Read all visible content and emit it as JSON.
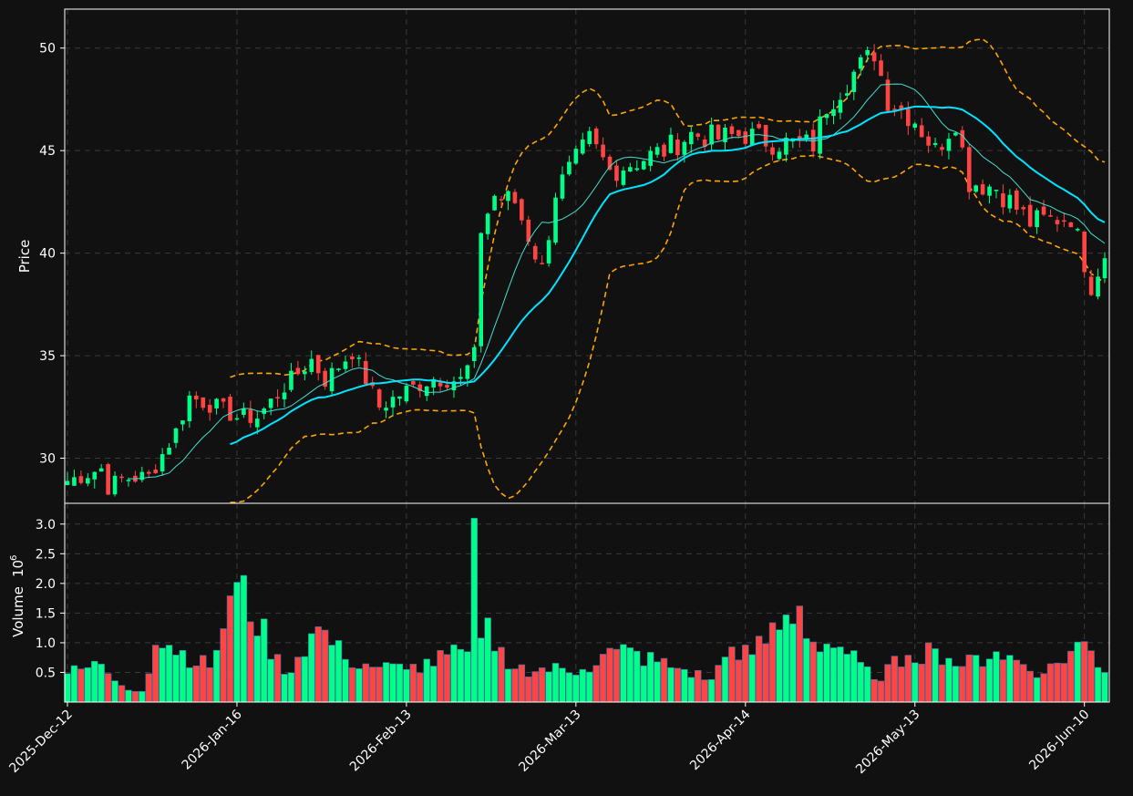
{
  "colors": {
    "background": "#111111",
    "up": "#00ff88",
    "down": "#ff4444",
    "ma_fast": "#40e0d0",
    "ma_slow": "#00e5ff",
    "bollinger": "#ffa500",
    "grid": "#3a3a3a",
    "axis": "#ffffff",
    "text": "#ffffff"
  },
  "chart_data": {
    "type": "candlestick",
    "title": "",
    "ylabel_price": "Price",
    "ylabel_volume": "Volume",
    "volume_exponent": "10",
    "volume_exponent_power": "6",
    "grid": true,
    "price_ylim": [
      27.8,
      51.9
    ],
    "price_yticks": [
      30,
      35,
      40,
      45,
      50
    ],
    "price_ytick_labels": [
      "30",
      "35",
      "40",
      "45",
      "50"
    ],
    "volume_ylim": [
      0,
      3.35
    ],
    "volume_yticks": [
      0.5,
      1.0,
      1.5,
      2.0,
      2.5,
      3.0
    ],
    "volume_ytick_labels": [
      "0.5",
      "1.0",
      "1.5",
      "2.0",
      "2.5",
      "3.0"
    ],
    "xtick_labels": [
      "2025-Dec-12",
      "2026-Jan-16",
      "2026-Feb-13",
      "2026-Mar-13",
      "2026-Apr-14",
      "2026-May-13",
      "2026-Jun-10"
    ],
    "xtick_indices": [
      0,
      25,
      50,
      75,
      100,
      125,
      150
    ],
    "series": [
      {
        "name": "",
        "kind": "ma_fast",
        "start": 9
      },
      {
        "name": "",
        "kind": "ma_slow",
        "start": 24
      },
      {
        "name": "",
        "kind": "bollinger",
        "start": 24
      }
    ],
    "n_points": 154,
    "ohlc_anchors": [
      [
        0,
        28.9
      ],
      [
        5,
        29.5
      ],
      [
        6,
        28.6
      ],
      [
        8,
        29.0
      ],
      [
        12,
        29.1
      ],
      [
        16,
        31.3
      ],
      [
        18,
        33.0
      ],
      [
        22,
        32.5
      ],
      [
        25,
        32.0
      ],
      [
        28,
        32.0
      ],
      [
        32,
        33.5
      ],
      [
        36,
        34.8
      ],
      [
        38,
        33.8
      ],
      [
        42,
        35.2
      ],
      [
        46,
        32.5
      ],
      [
        50,
        33.3
      ],
      [
        54,
        33.9
      ],
      [
        58,
        33.8
      ],
      [
        60,
        35.0
      ],
      [
        61,
        41.2
      ],
      [
        63,
        42.8
      ],
      [
        66,
        42.5
      ],
      [
        70,
        39.2
      ],
      [
        72,
        43.0
      ],
      [
        77,
        45.5
      ],
      [
        80,
        44.0
      ],
      [
        84,
        44.5
      ],
      [
        88,
        45.0
      ],
      [
        92,
        45.8
      ],
      [
        96,
        45.6
      ],
      [
        100,
        45.8
      ],
      [
        104,
        45.4
      ],
      [
        110,
        45.3
      ],
      [
        112,
        47.2
      ],
      [
        116,
        48.8
      ],
      [
        119,
        49.8
      ],
      [
        121,
        47.5
      ],
      [
        125,
        46.5
      ],
      [
        128,
        45.0
      ],
      [
        131,
        46.5
      ],
      [
        133,
        43.5
      ],
      [
        137,
        43.2
      ],
      [
        142,
        41.5
      ],
      [
        148,
        41.8
      ],
      [
        151,
        38.5
      ],
      [
        153,
        40.0
      ]
    ],
    "volume_anchors": [
      [
        0,
        0.48
      ],
      [
        5,
        0.64
      ],
      [
        8,
        0.28
      ],
      [
        11,
        0.18
      ],
      [
        13,
        0.96
      ],
      [
        15,
        0.96
      ],
      [
        21,
        0.58
      ],
      [
        25,
        2.02
      ],
      [
        32,
        0.47
      ],
      [
        37,
        1.27
      ],
      [
        41,
        0.72
      ],
      [
        46,
        0.59
      ],
      [
        50,
        0.55
      ],
      [
        59,
        0.85
      ],
      [
        60,
        3.1
      ],
      [
        61,
        1.08
      ],
      [
        62,
        1.42
      ],
      [
        63,
        0.86
      ],
      [
        66,
        0.56
      ],
      [
        76,
        0.55
      ],
      [
        81,
        0.89
      ],
      [
        90,
        0.57
      ],
      [
        95,
        0.38
      ],
      [
        98,
        0.93
      ],
      [
        101,
        0.8
      ],
      [
        108,
        1.62
      ],
      [
        109,
        1.07
      ],
      [
        114,
        0.93
      ],
      [
        119,
        0.38
      ],
      [
        124,
        0.79
      ],
      [
        128,
        0.9
      ],
      [
        132,
        0.6
      ],
      [
        137,
        0.85
      ],
      [
        144,
        0.48
      ],
      [
        150,
        1.02
      ],
      [
        153,
        0.5
      ]
    ]
  }
}
